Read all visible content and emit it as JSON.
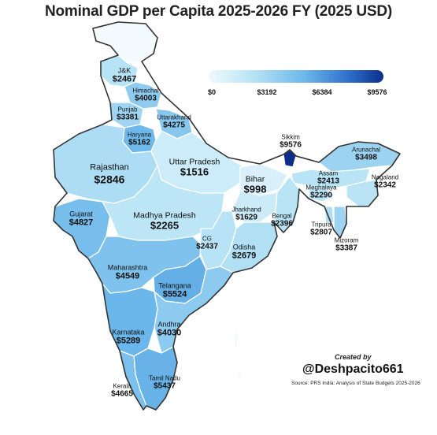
{
  "title": "Nominal GDP per Capita 2025-2026 FY (2025 USD)",
  "legend": {
    "ticks": [
      "$0",
      "$3192",
      "$6384",
      "$9576"
    ],
    "range": [
      0,
      9576
    ],
    "colors": [
      "#f0f9fe",
      "#0c2f8a"
    ]
  },
  "chart_data": {
    "type": "choropleth",
    "unit": "USD",
    "states": [
      {
        "id": "jk",
        "name": "J&K",
        "value": 2467,
        "label": "$2467"
      },
      {
        "id": "himachal",
        "name": "Himachal",
        "value": 4003,
        "label": "$4003"
      },
      {
        "id": "punjab",
        "name": "Punjab",
        "value": 3381,
        "label": "$3381"
      },
      {
        "id": "uttarakhand",
        "name": "Uttarakhand",
        "value": 4275,
        "label": "$4275"
      },
      {
        "id": "haryana",
        "name": "Haryana",
        "value": 5162,
        "label": "$5162"
      },
      {
        "id": "rajasthan",
        "name": "Rajasthan",
        "value": 2846,
        "label": "$2846"
      },
      {
        "id": "up",
        "name": "Uttar Pradesh",
        "value": 1516,
        "label": "$1516"
      },
      {
        "id": "bihar",
        "name": "Bihar",
        "value": 998,
        "label": "$998"
      },
      {
        "id": "sikkim",
        "name": "Sikkim",
        "value": 9576,
        "label": "$9576"
      },
      {
        "id": "arunachal",
        "name": "Arunachal",
        "value": 3498,
        "label": "$3498"
      },
      {
        "id": "assam",
        "name": "Assam",
        "value": 2413,
        "label": "$2413"
      },
      {
        "id": "meghalaya",
        "name": "Meghalaya",
        "value": 2290,
        "label": "$2290"
      },
      {
        "id": "nagaland",
        "name": "Nagaland",
        "value": 2342,
        "label": "$2342"
      },
      {
        "id": "tripura",
        "name": "Tripura",
        "value": 2807,
        "label": "$2807"
      },
      {
        "id": "mizoram",
        "name": "Mizoram",
        "value": 3387,
        "label": "$3387"
      },
      {
        "id": "gujarat",
        "name": "Gujarat",
        "value": 4827,
        "label": "$4827"
      },
      {
        "id": "mp",
        "name": "Madhya Pradesh",
        "value": 2265,
        "label": "$2265"
      },
      {
        "id": "jharkhand",
        "name": "Jharkhand",
        "value": 1629,
        "label": "$1629"
      },
      {
        "id": "bengal",
        "name": "Bengal",
        "value": 2396,
        "label": "$2396"
      },
      {
        "id": "cg",
        "name": "CG",
        "value": 2437,
        "label": "$2437"
      },
      {
        "id": "odisha",
        "name": "Odisha",
        "value": 2679,
        "label": "$2679"
      },
      {
        "id": "maharashtra",
        "name": "Maharashtra",
        "value": 4549,
        "label": "$4549"
      },
      {
        "id": "telangana",
        "name": "Telangana",
        "value": 5524,
        "label": "$5524"
      },
      {
        "id": "karnataka",
        "name": "Karnataka",
        "value": 5289,
        "label": "$5289"
      },
      {
        "id": "andhra",
        "name": "Andhra",
        "value": 4030,
        "label": "$4030"
      },
      {
        "id": "tamilnadu",
        "name": "Tamil Nadu",
        "value": 5437,
        "label": "$5437"
      },
      {
        "id": "kerala",
        "name": "Kerala",
        "value": 4665,
        "label": "$4665"
      }
    ]
  },
  "credit": {
    "created_by": "Created by",
    "handle": "@Deshpacito661",
    "source": "Source: PRS India: Analysis of State Budgets 2025-2026"
  }
}
